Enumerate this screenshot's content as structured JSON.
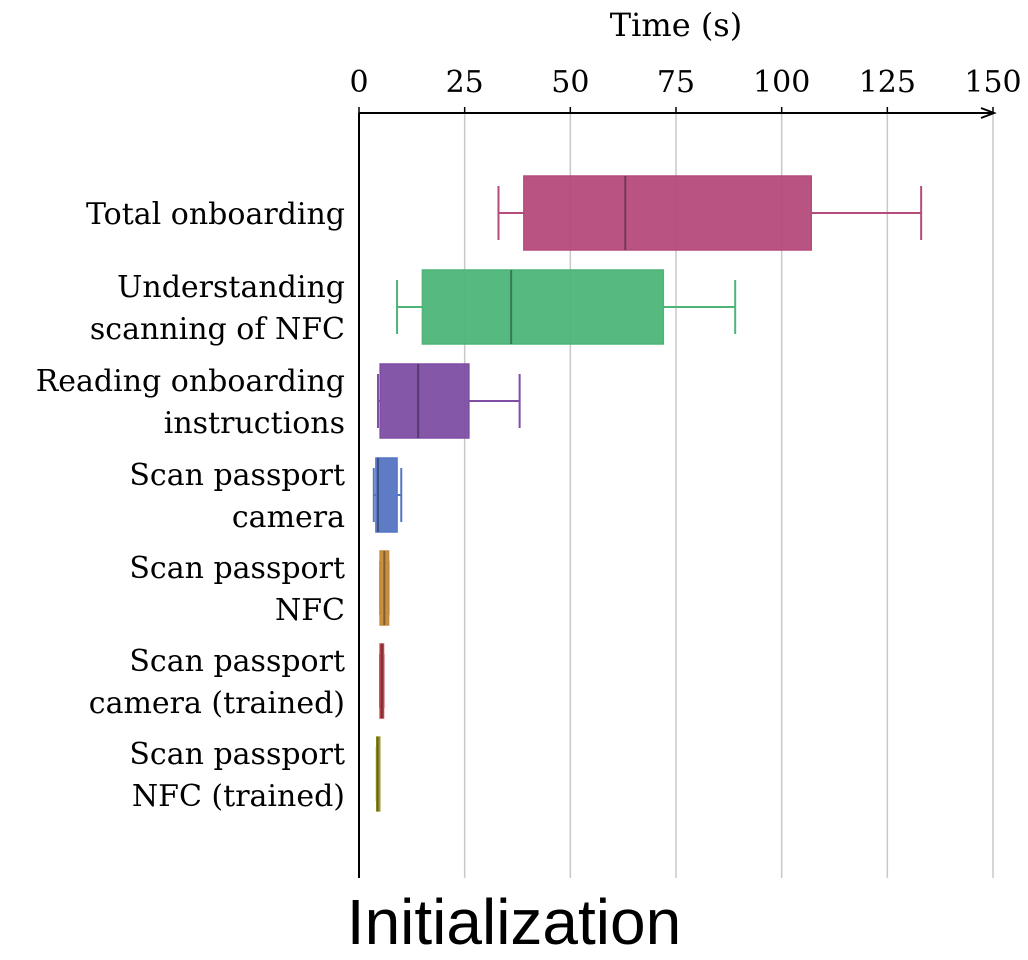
{
  "caption": "Initialization",
  "chart_data": {
    "type": "box",
    "orientation": "horizontal",
    "title": "",
    "xlabel": "Time (s)",
    "xlabel_position": "top",
    "ylabel": "",
    "xlim": [
      0,
      150
    ],
    "xticks": [
      "0",
      "25",
      "50",
      "75",
      "100",
      "125",
      "150"
    ],
    "grid": "vertical",
    "legend": "none",
    "categories": [
      [
        "Total onboarding"
      ],
      [
        "Understanding",
        "scanning of NFC"
      ],
      [
        "Reading onboarding",
        "instructions"
      ],
      [
        "Scan passport",
        "camera"
      ],
      [
        "Scan passport",
        "NFC"
      ],
      [
        "Scan passport",
        "camera (trained)"
      ],
      [
        "Scan passport",
        "NFC (trained)"
      ]
    ],
    "series": [
      {
        "whisker_low": 33,
        "q1": 39,
        "median": 63,
        "q3": 107,
        "whisker_high": 133,
        "color": "#b54b7b"
      },
      {
        "whisker_low": 9,
        "q1": 15,
        "median": 36,
        "q3": 72,
        "whisker_high": 89,
        "color": "#4db578"
      },
      {
        "whisker_low": 4.5,
        "q1": 5,
        "median": 14,
        "q3": 26,
        "whisker_high": 38,
        "color": "#7e4ea4"
      },
      {
        "whisker_low": 3.5,
        "q1": 4,
        "median": 4.5,
        "q3": 9,
        "whisker_high": 10,
        "color": "#5575c3"
      },
      {
        "whisker_low": 5,
        "q1": 5,
        "median": 6,
        "q3": 7,
        "whisker_high": 7,
        "color": "#c48a3a"
      },
      {
        "whisker_low": 5,
        "q1": 5,
        "median": 5.4,
        "q3": 5.8,
        "whisker_high": 5.8,
        "color": "#c0464a"
      },
      {
        "whisker_low": 4.2,
        "q1": 4.2,
        "median": 4.4,
        "q3": 4.7,
        "whisker_high": 4.7,
        "color": "#9b9a2a"
      }
    ]
  }
}
